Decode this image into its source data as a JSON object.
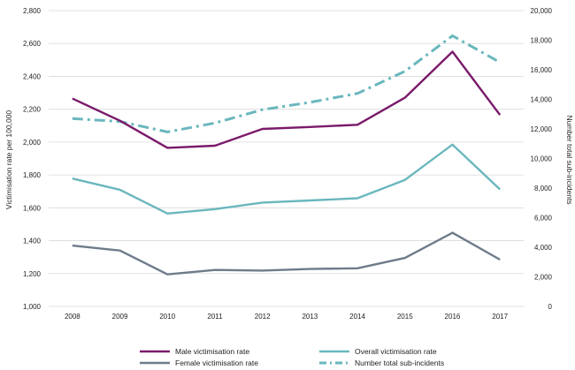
{
  "chart_data": {
    "type": "line",
    "categories": [
      "2008",
      "2009",
      "2010",
      "2011",
      "2012",
      "2013",
      "2014",
      "2015",
      "2016",
      "2017"
    ],
    "left_axis": {
      "label": "Victimisation rate per 100,000",
      "range": [
        1000,
        2800
      ],
      "ticks": [
        "1,000",
        "1,200",
        "1,400",
        "1,600",
        "1,800",
        "2,000",
        "2,200",
        "2,400",
        "2,600",
        "2,800"
      ]
    },
    "right_axis": {
      "label": "Number total sub-incidents",
      "range": [
        0,
        20000
      ],
      "ticks": [
        "0",
        "2,000",
        "4,000",
        "6,000",
        "8,000",
        "10,000",
        "12,000",
        "14,000",
        "16,000",
        "18,000",
        "20,000"
      ]
    },
    "grid": true,
    "legend_position": "bottom",
    "series": [
      {
        "name": "Male victimisation rate",
        "axis": "left",
        "style": "solid",
        "color": "#7b1a6a",
        "values": [
          2265,
          2130,
          1965,
          1978,
          2080,
          2092,
          2105,
          2270,
          2550,
          2165
        ]
      },
      {
        "name": "Overall victimisation rate",
        "axis": "left",
        "style": "solid",
        "color": "#6ab7bd",
        "values": [
          1778,
          1710,
          1565,
          1592,
          1632,
          1645,
          1658,
          1770,
          1985,
          1712
        ]
      },
      {
        "name": "Female victimisation rate",
        "axis": "left",
        "style": "solid",
        "color": "#6e7b8a",
        "values": [
          1370,
          1340,
          1195,
          1222,
          1218,
          1228,
          1232,
          1295,
          1448,
          1285
        ]
      },
      {
        "name": "Number total sub-incidents",
        "axis": "right",
        "style": "dashdot",
        "color": "#6ab7bd",
        "values": [
          12700,
          12500,
          11800,
          12400,
          13300,
          13800,
          14400,
          15900,
          18300,
          16500
        ]
      }
    ]
  }
}
